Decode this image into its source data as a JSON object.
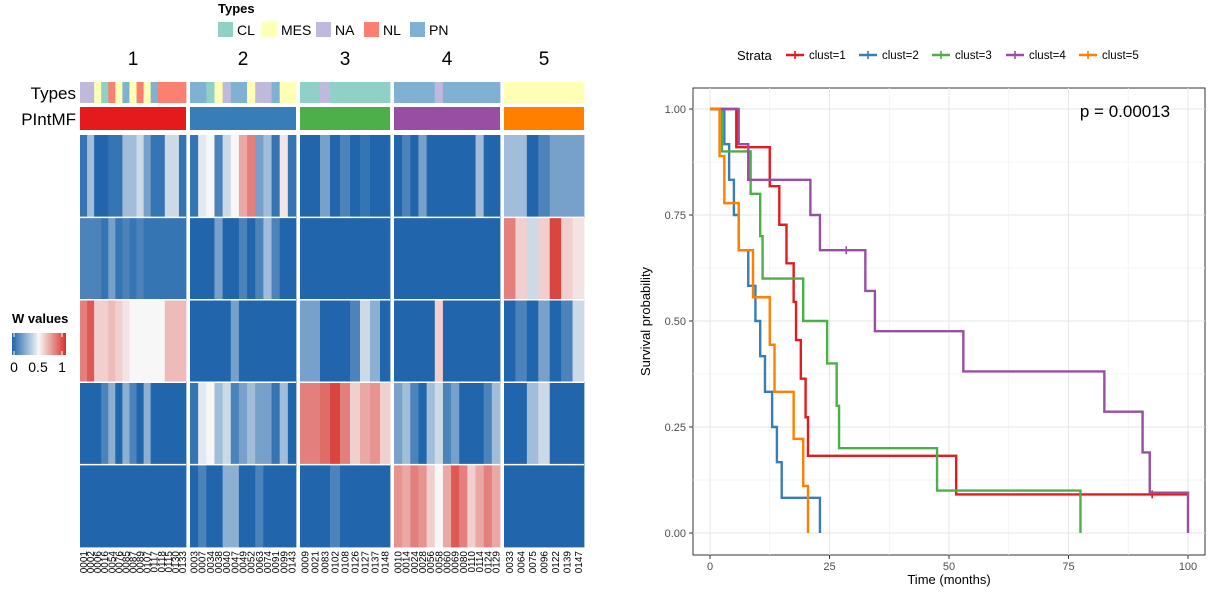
{
  "chart_data": [
    {
      "type": "heatmap",
      "legend_title": "Types",
      "type_legend": [
        {
          "label": "CL",
          "color": "#8fd1c6"
        },
        {
          "label": "MES",
          "color": "#ffffb5"
        },
        {
          "label": "NA",
          "color": "#bfbadb"
        },
        {
          "label": "NL",
          "color": "#fb8072"
        },
        {
          "label": "PN",
          "color": "#80b1d3"
        }
      ],
      "row_annotation_labels": [
        "Types",
        "PIntMF"
      ],
      "color_legend": {
        "title": "W values",
        "ticks": [
          "0",
          "0.5",
          "1"
        ],
        "low": "#2166ac",
        "mid": "#f7f7f7",
        "high": "#d6312b"
      },
      "clusters": [
        {
          "label": "1",
          "color": "#e41a1c",
          "samples": [
            "0001",
            "0002",
            "0006",
            "0016",
            "0054",
            "0076",
            "0085",
            "0087",
            "0089",
            "0107",
            "0117",
            "0118",
            "0115",
            "0130",
            "0133"
          ],
          "types": [
            "NA",
            "NA",
            "MES",
            "CL",
            "NL",
            "MES",
            "PN",
            "MES",
            "NL",
            "MES",
            "PN",
            "NL",
            "NL",
            "NL",
            "NL"
          ],
          "rows": [
            [
              0.05,
              0.3,
              0.0,
              0.0,
              0.05,
              0.05,
              0.3,
              0.3,
              0.4,
              0.2,
              0.05,
              0.05,
              0.4,
              0.4,
              0.05
            ],
            [
              0.1,
              0.1,
              0.1,
              0.05,
              0.2,
              0.05,
              0.1,
              0.05,
              0.1,
              0.05,
              0.05,
              0.05,
              0.05,
              0.05,
              0.05
            ],
            [
              0.8,
              0.9,
              0.6,
              0.6,
              0.65,
              0.6,
              0.55,
              0.5,
              0.5,
              0.5,
              0.5,
              0.5,
              0.65,
              0.65,
              0.65
            ],
            [
              0.0,
              0.0,
              0.0,
              0.1,
              0.25,
              0.0,
              0.25,
              0.1,
              0.0,
              0.25,
              0.0,
              0.0,
              0.0,
              0.0,
              0.0
            ],
            [
              0.0,
              0.0,
              0.0,
              0.0,
              0.0,
              0.0,
              0.0,
              0.0,
              0.0,
              0.0,
              0.0,
              0.0,
              0.0,
              0.0,
              0.0
            ]
          ]
        },
        {
          "label": "2",
          "color": "#377eb8",
          "samples": [
            "0003",
            "0007",
            "0034",
            "0038",
            "0040",
            "0047",
            "0049",
            "0052",
            "0063",
            "0074",
            "0091",
            "0099",
            "0143"
          ],
          "types": [
            "PN",
            "PN",
            "CL",
            "MES",
            "NA",
            "PN",
            "PN",
            "MES",
            "NA",
            "NA",
            "PN",
            "MES",
            "MES"
          ],
          "rows": [
            [
              0.05,
              0.45,
              0.5,
              0.1,
              0.4,
              0.5,
              0.7,
              0.8,
              0.2,
              0.3,
              0.05,
              0.55,
              0.05
            ],
            [
              0.0,
              0.0,
              0.0,
              0.2,
              0.0,
              0.0,
              0.1,
              0.0,
              0.1,
              0.3,
              0.1,
              0.0,
              0.0
            ],
            [
              0.0,
              0.0,
              0.0,
              0.0,
              0.0,
              0.2,
              0.0,
              0.0,
              0.0,
              0.0,
              0.0,
              0.0,
              0.0
            ],
            [
              0.05,
              0.45,
              0.5,
              0.3,
              0.4,
              0.1,
              0.2,
              0.3,
              0.2,
              0.2,
              0.05,
              0.3,
              0.0
            ],
            [
              0.0,
              0.1,
              0.0,
              0.0,
              0.25,
              0.25,
              0.0,
              0.0,
              0.1,
              0.0,
              0.0,
              0.0,
              0.0
            ]
          ]
        },
        {
          "label": "3",
          "color": "#4daf4a",
          "samples": [
            "0009",
            "0021",
            "0083",
            "0102",
            "0108",
            "0126",
            "0127",
            "0137",
            "0148"
          ],
          "types": [
            "CL",
            "CL",
            "NA",
            "CL",
            "CL",
            "CL",
            "CL",
            "CL",
            "CL"
          ],
          "rows": [
            [
              0.0,
              0.0,
              0.2,
              0.0,
              0.1,
              0.0,
              0.05,
              0.0,
              0.0
            ],
            [
              0.0,
              0.0,
              0.0,
              0.0,
              0.0,
              0.0,
              0.0,
              0.0,
              0.0
            ],
            [
              0.2,
              0.2,
              0.0,
              0.0,
              0.0,
              0.1,
              0.4,
              0.25,
              0.0
            ],
            [
              0.8,
              0.8,
              0.85,
              0.95,
              0.8,
              0.6,
              0.7,
              0.75,
              0.6
            ],
            [
              0.0,
              0.0,
              0.0,
              0.1,
              0.0,
              0.0,
              0.0,
              0.0,
              0.0
            ]
          ]
        },
        {
          "label": "4",
          "color": "#984ea3",
          "samples": [
            "0010",
            "0014",
            "0024",
            "0028",
            "0056",
            "0058",
            "0060",
            "0069",
            "0080",
            "0110",
            "0114",
            "0124",
            "0129"
          ],
          "types": [
            "PN",
            "PN",
            "PN",
            "PN",
            "PN",
            "NA",
            "PN",
            "PN",
            "PN",
            "PN",
            "PN",
            "PN",
            "PN"
          ],
          "rows": [
            [
              0.0,
              0.1,
              0.0,
              0.2,
              0.0,
              0.0,
              0.0,
              0.0,
              0.0,
              0.0,
              0.3,
              0.0,
              0.0
            ],
            [
              0.0,
              0.0,
              0.0,
              0.0,
              0.0,
              0.0,
              0.0,
              0.0,
              0.0,
              0.0,
              0.0,
              0.0,
              0.0
            ],
            [
              0.0,
              0.0,
              0.0,
              0.0,
              0.0,
              0.6,
              0.0,
              0.0,
              0.0,
              0.0,
              0.0,
              0.0,
              0.0
            ],
            [
              0.2,
              0.3,
              0.1,
              0.0,
              0.3,
              0.4,
              0.1,
              0.2,
              0.0,
              0.0,
              0.0,
              0.1,
              0.3
            ],
            [
              0.75,
              0.7,
              0.8,
              0.75,
              0.6,
              0.5,
              0.7,
              0.9,
              0.8,
              0.6,
              0.7,
              0.8,
              0.7
            ]
          ]
        },
        {
          "label": "5",
          "color": "#ff7f00",
          "samples": [
            "0033",
            "0064",
            "0075",
            "0096",
            "0122",
            "0139",
            "0147"
          ],
          "types": [
            "MES",
            "MES",
            "MES",
            "MES",
            "MES",
            "MES",
            "MES"
          ],
          "rows": [
            [
              0.3,
              0.3,
              0.0,
              0.1,
              0.2,
              0.2,
              0.2
            ],
            [
              0.8,
              0.6,
              0.4,
              0.6,
              0.95,
              0.6,
              0.55
            ],
            [
              0.0,
              0.1,
              0.0,
              0.2,
              0.0,
              0.1,
              0.4
            ],
            [
              0.0,
              0.0,
              0.3,
              0.4,
              0.0,
              0.0,
              0.0
            ],
            [
              0.0,
              0.0,
              0.0,
              0.0,
              0.0,
              0.0,
              0.0
            ]
          ]
        }
      ]
    },
    {
      "type": "line",
      "subtype": "kaplan-meier",
      "legend_title": "Strata",
      "legend_position": "top",
      "annotation": "p = 0.00013",
      "xlabel": "Time (months)",
      "ylabel": "Survival probability",
      "xlim": [
        0,
        100
      ],
      "ylim": [
        0,
        1
      ],
      "xticks": [
        0,
        25,
        50,
        75,
        100
      ],
      "yticks": [
        0,
        0.25,
        0.5,
        0.75,
        1
      ],
      "ytick_labels": [
        "0.00",
        "0.25",
        "0.50",
        "0.75",
        "1.00"
      ],
      "grid": true,
      "series": [
        {
          "name": "clust=1",
          "color": "#e41a1c",
          "steps": [
            [
              0,
              1.0
            ],
            [
              5.5,
              0.91
            ],
            [
              12.5,
              0.818
            ],
            [
              14.5,
              0.727
            ],
            [
              16,
              0.636
            ],
            [
              17.5,
              0.545
            ],
            [
              18,
              0.455
            ],
            [
              19,
              0.364
            ],
            [
              20,
              0.273
            ],
            [
              20.5,
              0.182
            ],
            [
              51.5,
              0.091
            ],
            [
              100,
              0.091
            ]
          ],
          "censored": [
            [
              92.5,
              0.091
            ]
          ]
        },
        {
          "name": "clust=2",
          "color": "#377eb8",
          "steps": [
            [
              0,
              1.0
            ],
            [
              3,
              0.917
            ],
            [
              4,
              0.833
            ],
            [
              5,
              0.75
            ],
            [
              6,
              0.667
            ],
            [
              8,
              0.583
            ],
            [
              9.5,
              0.5
            ],
            [
              10.5,
              0.417
            ],
            [
              11.5,
              0.333
            ],
            [
              13,
              0.25
            ],
            [
              14,
              0.167
            ],
            [
              15,
              0.083
            ],
            [
              23,
              0.0
            ]
          ],
          "censored": []
        },
        {
          "name": "clust=3",
          "color": "#4daf4a",
          "steps": [
            [
              0,
              1.0
            ],
            [
              2.5,
              0.9
            ],
            [
              8.5,
              0.8
            ],
            [
              10.5,
              0.7
            ],
            [
              11,
              0.6
            ],
            [
              19.5,
              0.5
            ],
            [
              24.5,
              0.4
            ],
            [
              26.5,
              0.3
            ],
            [
              27,
              0.2
            ],
            [
              47.5,
              0.1
            ],
            [
              77.5,
              0.0
            ]
          ],
          "censored": []
        },
        {
          "name": "clust=4",
          "color": "#984ea3",
          "steps": [
            [
              0,
              1.0
            ],
            [
              6,
              0.917
            ],
            [
              8,
              0.833
            ],
            [
              21,
              0.75
            ],
            [
              23,
              0.667
            ],
            [
              32.5,
              0.571
            ],
            [
              34.5,
              0.476
            ],
            [
              53,
              0.381
            ],
            [
              82.5,
              0.286
            ],
            [
              90.5,
              0.19
            ],
            [
              92,
              0.095
            ],
            [
              100,
              0.0
            ]
          ],
          "censored": [
            [
              28.5,
              0.667
            ]
          ]
        },
        {
          "name": "clust=5",
          "color": "#ff7f00",
          "steps": [
            [
              0,
              1.0
            ],
            [
              2,
              0.889
            ],
            [
              3,
              0.778
            ],
            [
              6,
              0.667
            ],
            [
              9,
              0.556
            ],
            [
              12.5,
              0.444
            ],
            [
              13.5,
              0.333
            ],
            [
              17.5,
              0.222
            ],
            [
              19.5,
              0.111
            ],
            [
              20.5,
              0.0
            ]
          ],
          "censored": []
        }
      ]
    }
  ]
}
